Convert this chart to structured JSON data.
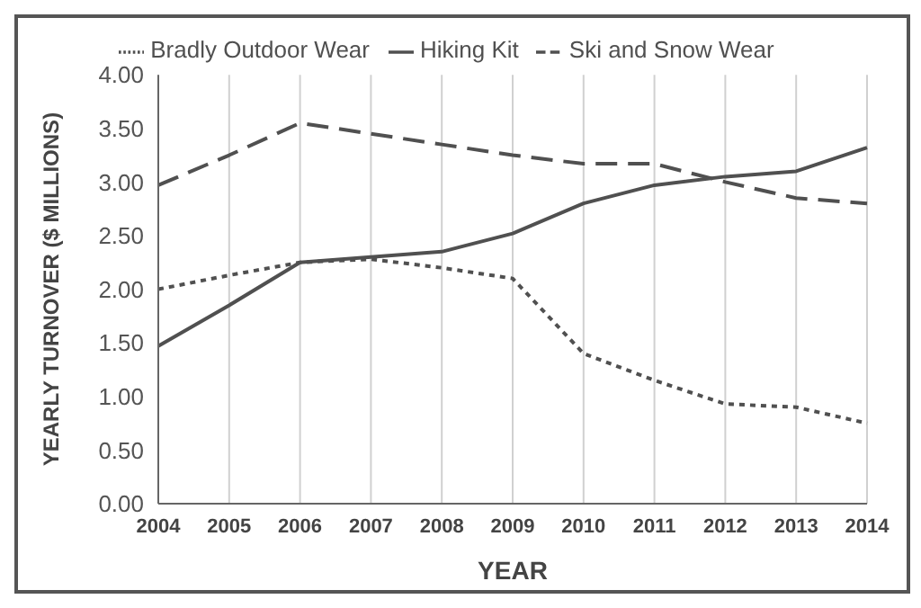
{
  "chart_data": {
    "type": "line",
    "xlabel": "YEAR",
    "ylabel": "YEARLY TURNOVER ($ MILLIONS)",
    "categories": [
      "2004",
      "2005",
      "2006",
      "2007",
      "2008",
      "2009",
      "2010",
      "2011",
      "2012",
      "2013",
      "2014"
    ],
    "series": [
      {
        "name": "Bradly Outdoor Wear",
        "color": "#505050",
        "line_style": "dotted",
        "values": [
          2.0,
          2.13,
          2.25,
          2.28,
          2.2,
          2.1,
          1.4,
          1.15,
          0.93,
          0.9,
          0.75
        ]
      },
      {
        "name": "Ski and Snow Wear",
        "color": "#505050",
        "line_style": "dashed",
        "values": [
          2.97,
          3.25,
          3.55,
          3.45,
          3.35,
          3.25,
          3.17,
          3.17,
          3.0,
          2.85,
          2.8
        ]
      },
      {
        "name": "Hiking Kit",
        "color": "#505050",
        "line_style": "solid",
        "values": [
          1.47,
          1.85,
          2.25,
          2.3,
          2.35,
          2.52,
          2.8,
          2.97,
          3.05,
          3.1,
          3.32
        ]
      }
    ],
    "ylim": [
      0,
      4
    ],
    "yticks": [
      {
        "value": 0,
        "label": "0.00"
      },
      {
        "value": 0.5,
        "label": "0.50"
      },
      {
        "value": 1,
        "label": "1.00"
      },
      {
        "value": 1.5,
        "label": "1.50"
      },
      {
        "value": 2,
        "label": "2.00"
      },
      {
        "value": 2.5,
        "label": "2.50"
      },
      {
        "value": 3,
        "label": "3.00"
      },
      {
        "value": 3.5,
        "label": "3.50"
      },
      {
        "value": 4,
        "label": "4.00"
      }
    ],
    "grid": "x",
    "legend": "top",
    "marker": "none"
  }
}
